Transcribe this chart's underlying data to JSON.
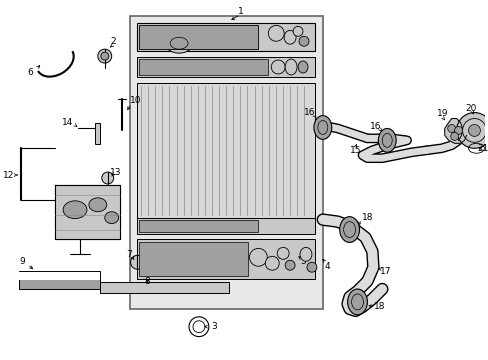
{
  "background_color": "#ffffff",
  "fig_width": 4.89,
  "fig_height": 3.6,
  "dpi": 100,
  "box_color": "#e8e8e8",
  "part_gray": "#c8c8c8",
  "part_dark": "#a0a0a0",
  "fin_color": "#b0b0b0",
  "line_color": "#000000"
}
